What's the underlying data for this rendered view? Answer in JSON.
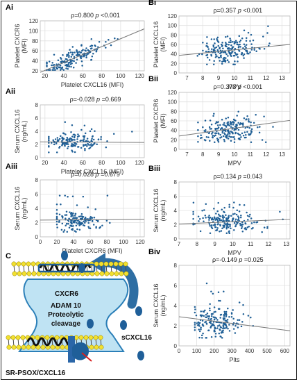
{
  "chart_data": [
    {
      "id": "Ai",
      "type": "scatter",
      "panel_label": "Ai",
      "xlabel": "Platelet CXCL16 (MFI)",
      "ylabel": [
        "Platelet CXCR6",
        "(MFI)"
      ],
      "xlim": [
        15,
        125
      ],
      "ylim": [
        20,
        120
      ],
      "xticks": [
        20,
        40,
        60,
        80,
        100,
        120
      ],
      "yticks": [
        20,
        40,
        60,
        80,
        100,
        120
      ],
      "stats": {
        "rho": "ρ=0.800",
        "p": "p <0.001"
      },
      "fit": {
        "x": [
          15,
          125
        ],
        "y": [
          17,
          104
        ]
      },
      "gen": {
        "n": 170,
        "mode": "corr",
        "xmean": 50,
        "xsd": 16,
        "xmin": 22,
        "xmax": 115,
        "slope": 0.8,
        "intercept": 5,
        "noise": 9,
        "ymin": 22,
        "ymax": 118,
        "seed": 11
      }
    },
    {
      "id": "Aii",
      "type": "scatter",
      "panel_label": "Aii",
      "xlabel": "Platelet CXCL16 (MFI)",
      "ylabel": [
        "Serum CXCL16",
        "(ng/mL)"
      ],
      "xlim": [
        15,
        125
      ],
      "ylim": [
        0,
        8
      ],
      "xticks": [
        20,
        40,
        60,
        80,
        100,
        120
      ],
      "yticks": [
        0,
        2,
        4,
        6,
        8
      ],
      "stats": {
        "rho": "ρ=-0.028",
        "p": "p =0.669"
      },
      "fit": {
        "x": [
          15,
          125
        ],
        "y": [
          2.4,
          2.3
        ]
      },
      "gen": {
        "n": 160,
        "mode": "flat",
        "xmean": 50,
        "xsd": 16,
        "xmin": 24,
        "xmax": 112,
        "ybase": 2.3,
        "ysd": 0.7,
        "ymin": 0.8,
        "ymax": 5.6,
        "seed": 23
      }
    },
    {
      "id": "Aiii",
      "type": "scatter",
      "panel_label": "Aiii",
      "xlabel": "Platelet CXCR6 (MFI)",
      "ylabel": [
        "Serum CXCL16",
        "(ng/mL)"
      ],
      "xlim": [
        0,
        125
      ],
      "ylim": [
        0,
        8
      ],
      "xticks": [
        0,
        20,
        40,
        60,
        80,
        100,
        120
      ],
      "yticks": [
        0,
        2,
        4,
        6,
        8
      ],
      "stats": {
        "rho": "ρ=0.028",
        "p": "p =0.679"
      },
      "fit": {
        "x": [
          0,
          125
        ],
        "y": [
          2.35,
          2.45
        ]
      },
      "gen": {
        "n": 160,
        "mode": "flat",
        "xmean": 42,
        "xsd": 14,
        "xmin": 20,
        "xmax": 108,
        "ybase": 2.3,
        "ysd": 0.7,
        "ymin": 0.7,
        "ymax": 5.8,
        "seed": 37
      }
    },
    {
      "id": "Bi",
      "type": "scatter",
      "panel_label": "Bi",
      "xlabel": "MPV",
      "ylabel": [
        "Platelet CXCL16",
        "(MFI)"
      ],
      "xlim": [
        6.5,
        13.5
      ],
      "ylim": [
        0,
        120
      ],
      "xticks": [
        7,
        8,
        9,
        10,
        11,
        12,
        13
      ],
      "yticks": [
        0,
        20,
        40,
        60,
        80,
        100,
        120
      ],
      "stats": {
        "rho": "ρ=0.357",
        "p": "p <0.001"
      },
      "fit": {
        "x": [
          6.5,
          13.5
        ],
        "y": [
          37,
          60
        ]
      },
      "gen": {
        "n": 200,
        "mode": "corr",
        "xmean": 9.6,
        "xsd": 0.9,
        "xmin": 7.6,
        "xmax": 12.8,
        "slope": 3.5,
        "intercept": 15,
        "noise": 15,
        "ymin": 18,
        "ymax": 112,
        "seed": 51
      }
    },
    {
      "id": "Bii",
      "type": "scatter",
      "panel_label": "Bii",
      "xlabel": "MPV",
      "ylabel": [
        "Platelet CXCR6",
        "(MFI)"
      ],
      "xlim": [
        6.5,
        13.5
      ],
      "ylim": [
        0,
        120
      ],
      "xticks": [
        7,
        8,
        9,
        10,
        11,
        12,
        13
      ],
      "yticks": [
        0,
        20,
        40,
        60,
        80,
        100,
        120
      ],
      "stats": {
        "rho": "ρ=0.373",
        "p": "p <0.001"
      },
      "fit": {
        "x": [
          6.5,
          13.5
        ],
        "y": [
          28,
          61
        ]
      },
      "gen": {
        "n": 200,
        "mode": "corr",
        "xmean": 9.6,
        "xsd": 0.9,
        "xmin": 7.7,
        "xmax": 12.8,
        "slope": 4.6,
        "intercept": -2,
        "noise": 13,
        "ymin": 15,
        "ymax": 112,
        "seed": 67
      }
    },
    {
      "id": "Biii",
      "type": "scatter",
      "panel_label": "Biii",
      "xlabel": "MPV",
      "ylabel": [
        "Serum CXCL16",
        "(ng/mL)"
      ],
      "xlim": [
        7,
        13.2
      ],
      "ylim": [
        0,
        8
      ],
      "xticks": [
        7,
        8,
        9,
        10,
        11,
        12,
        13
      ],
      "yticks": [
        0,
        2,
        4,
        6,
        8
      ],
      "stats": {
        "rho": "ρ=0.134",
        "p": "p =0.043"
      },
      "fit": {
        "x": [
          7,
          13.2
        ],
        "y": [
          2.1,
          2.75
        ]
      },
      "gen": {
        "n": 200,
        "mode": "flat",
        "xmean": 9.7,
        "xsd": 0.9,
        "xmin": 7.8,
        "xmax": 12.8,
        "ybase": 2.4,
        "ysd": 0.75,
        "ymin": 0.8,
        "ymax": 6.2,
        "seed": 79
      }
    },
    {
      "id": "Biv",
      "type": "scatter",
      "panel_label": "Biv",
      "xlabel": "Plts",
      "ylabel": [
        "Serum CXCL16",
        "(ng/mL)"
      ],
      "xlim": [
        0,
        630
      ],
      "ylim": [
        0,
        8
      ],
      "xticks": [
        0,
        100,
        200,
        300,
        400,
        500,
        600
      ],
      "yticks": [
        0,
        2,
        4,
        6,
        8
      ],
      "stats": {
        "rho": "ρ=-0.149",
        "p": "p =0.025"
      },
      "fit": {
        "x": [
          0,
          630
        ],
        "y": [
          2.9,
          1.5
        ]
      },
      "gen": {
        "n": 190,
        "mode": "flat",
        "xmean": 205,
        "xsd": 65,
        "xmin": 90,
        "xmax": 520,
        "ybase": 2.3,
        "ysd": 0.75,
        "ymin": 0.8,
        "ymax": 6.4,
        "seed": 93
      }
    }
  ],
  "diagram": {
    "panel_label": "C",
    "cxcr6": "CXCR6",
    "adam_lines": [
      "ADAM 10",
      "Proteolytic",
      "cleavage"
    ],
    "scxcl16": "sCXCL16",
    "sr": "SR-PSOX/CXCL16"
  }
}
